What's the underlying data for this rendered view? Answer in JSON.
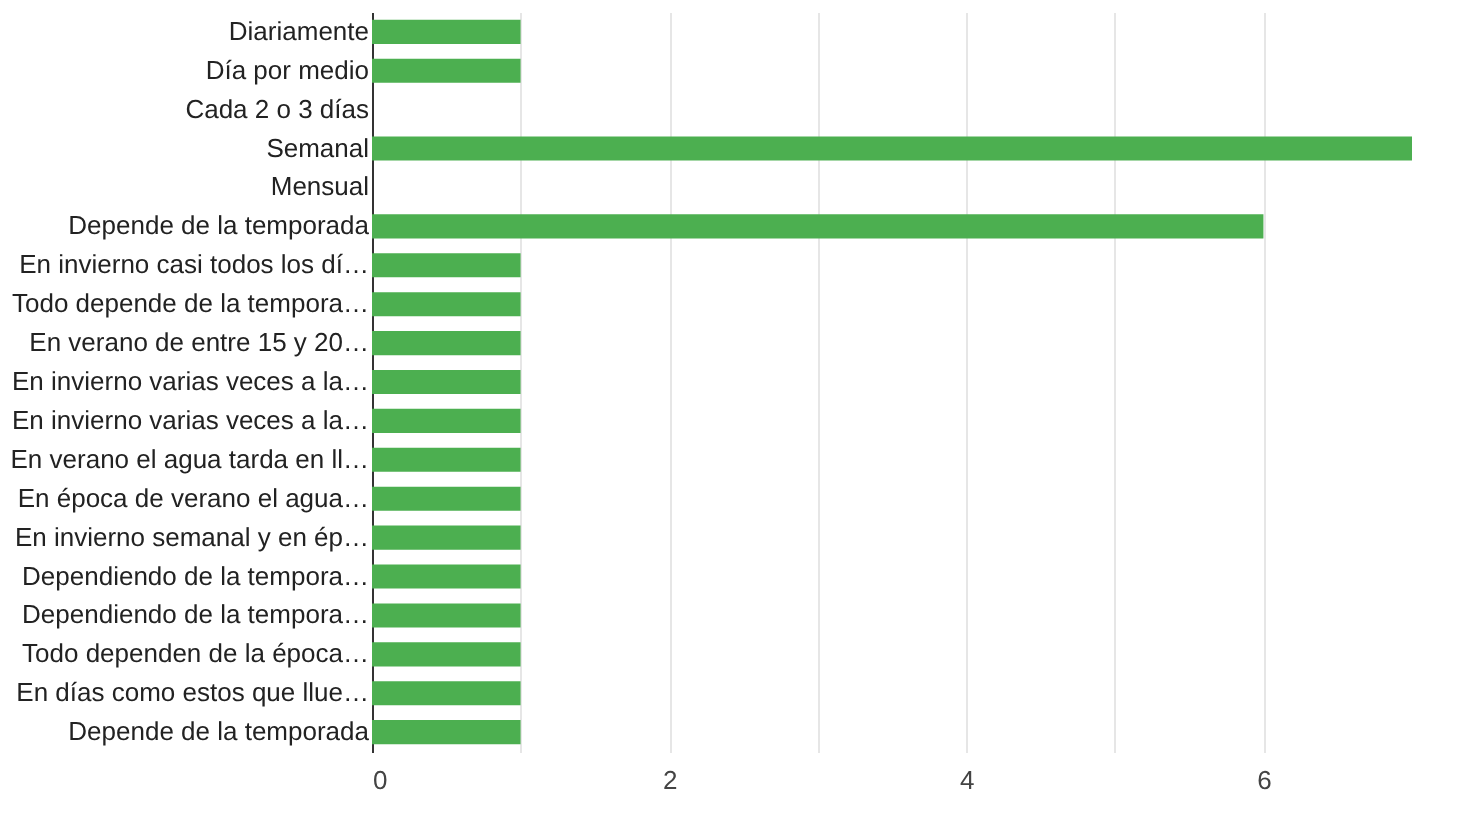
{
  "chart_data": {
    "type": "bar",
    "orientation": "horizontal",
    "categories": [
      "Diariamente",
      "Día por medio",
      "Cada 2 o 3 días",
      "Semanal",
      "Mensual",
      "Depende de la temporada",
      "En invierno casi todos los dí…",
      "Todo depende de la tempora…",
      "En verano de entre 15 y 20…",
      "En invierno varias veces a la…",
      "En invierno varias veces a la…",
      "En verano el agua tarda en ll…",
      "En época de verano el agua…",
      "En invierno semanal y en ép…",
      "Dependiendo de la tempora…",
      "Dependiendo de la tempora…",
      "Todo dependen de la época…",
      "En días como estos que llue…",
      "Depende de la temporada"
    ],
    "values": [
      1,
      1,
      0,
      7,
      0,
      6,
      1,
      1,
      1,
      1,
      1,
      1,
      1,
      1,
      1,
      1,
      1,
      1,
      1
    ],
    "color": "#4caf50",
    "xlim": [
      0,
      7
    ],
    "xticks": [
      0,
      {
        "value": 1,
        "label": null
      },
      2,
      {
        "value": 3,
        "label": null
      },
      4,
      {
        "value": 5,
        "label": null
      },
      6
    ],
    "grid": "x"
  }
}
